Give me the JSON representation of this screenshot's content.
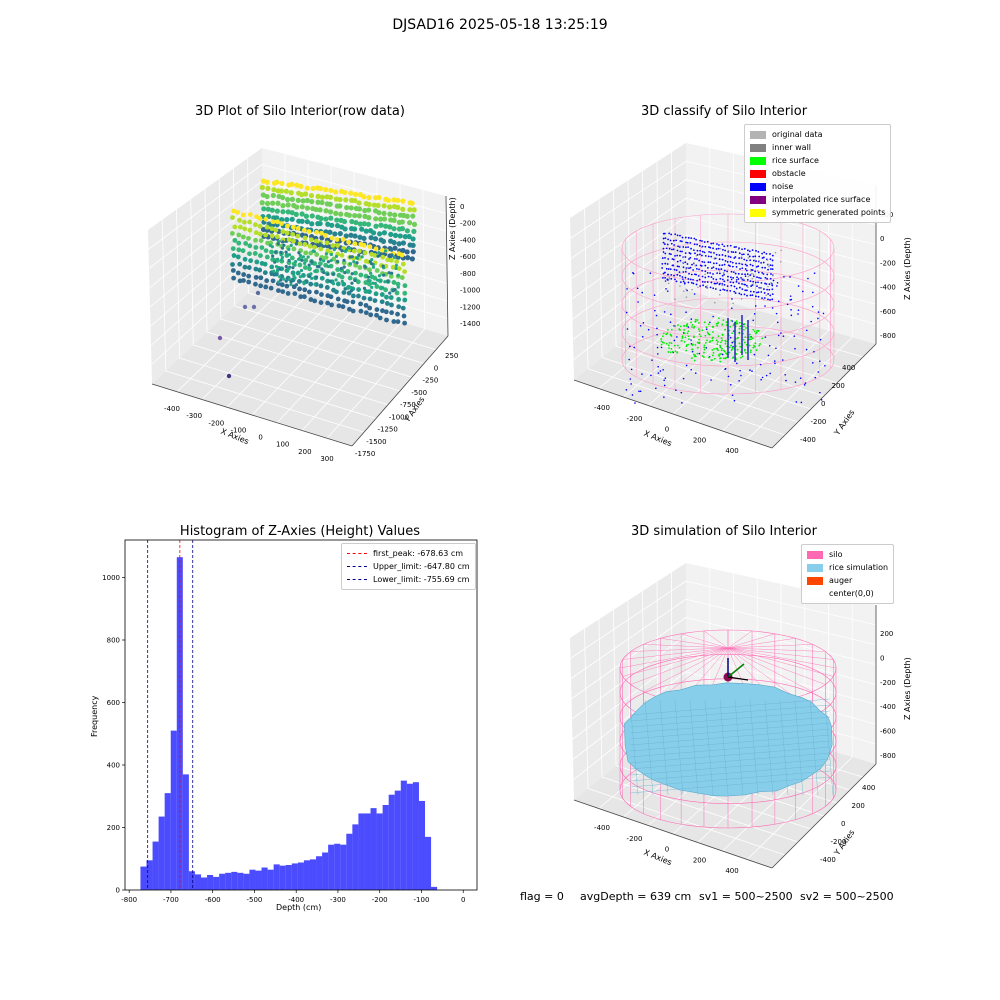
{
  "suptitle": "DJSAD16 2025-05-18 13:25:19",
  "footer": {
    "flag": "flag = 0",
    "avg_depth": "avgDepth = 639 cm",
    "sv1": "sv1 = 500~2500",
    "sv2": "sv2 = 500~2500"
  },
  "panels": {
    "raw": {
      "title": "3D Plot of Silo Interior(row data)",
      "xlabel": "X Axies",
      "ylabel": "Y Axies",
      "zlabel": "Z Axies (Depth)",
      "xticks": [
        "-400",
        "-300",
        "-200",
        "-100",
        "0",
        "100",
        "200",
        "300"
      ],
      "yticks": [
        "250",
        "0",
        "-250",
        "-500",
        "-750",
        "-1000",
        "-1250",
        "-1500",
        "-1750"
      ],
      "zticks": [
        "0",
        "-200",
        "-400",
        "-600",
        "-800",
        "-1000",
        "-1200",
        "-1400"
      ]
    },
    "classify": {
      "title": "3D classify of Silo Interior",
      "xlabel": "X Axies",
      "ylabel": "Y Axies",
      "zlabel": "Z Axies (Depth)",
      "xticks": [
        "-400",
        "-200",
        "0",
        "200",
        "400"
      ],
      "yticks": [
        "400",
        "200",
        "0",
        "-200",
        "-400"
      ],
      "zticks": [
        "200",
        "0",
        "-200",
        "-400",
        "-600",
        "-800"
      ],
      "legend": [
        {
          "label": "original data",
          "color": "#b3b3b3"
        },
        {
          "label": "inner wall",
          "color": "#808080"
        },
        {
          "label": "rice surface",
          "color": "#00ff00"
        },
        {
          "label": "obstacle",
          "color": "#ff0000"
        },
        {
          "label": "noise",
          "color": "#0000ff"
        },
        {
          "label": "interpolated rice surface",
          "color": "#800080"
        },
        {
          "label": "symmetric generated points",
          "color": "#ffff00"
        }
      ]
    },
    "simulation": {
      "title": "3D simulation of Silo Interior",
      "xlabel": "X Axies",
      "ylabel": "Y Axies",
      "zlabel": "Z Axies (Depth)",
      "xticks": [
        "-400",
        "-200",
        "0",
        "200",
        "400"
      ],
      "yticks": [
        "400",
        "200",
        "0",
        "-200",
        "-400"
      ],
      "zticks": [
        "200",
        "0",
        "-200",
        "-400",
        "-600",
        "-800"
      ],
      "legend": [
        {
          "label": "silo",
          "color": "#ff69b4"
        },
        {
          "label": "rice simulation",
          "color": "#87ceeb"
        },
        {
          "label": "auger",
          "color": "#ff4500"
        },
        {
          "label": "center(0,0)",
          "color": "#ffffff"
        }
      ]
    }
  },
  "chart_data": [
    {
      "type": "bar",
      "title": "Histogram of Z-Axies (Height) Values",
      "xlabel": "Depth (cm)",
      "ylabel": "Frequency",
      "xlim": [
        -810,
        33
      ],
      "ylim": [
        0,
        1120
      ],
      "bin_start": -773,
      "bin_width": 14.5,
      "values": [
        75,
        95,
        155,
        235,
        310,
        510,
        1065,
        370,
        60,
        50,
        40,
        48,
        42,
        52,
        55,
        58,
        55,
        52,
        65,
        62,
        72,
        65,
        82,
        78,
        80,
        85,
        88,
        95,
        98,
        108,
        120,
        145,
        148,
        145,
        180,
        210,
        245,
        245,
        262,
        245,
        272,
        305,
        318,
        350,
        340,
        345,
        285,
        170,
        10
      ],
      "color": "#0000ff",
      "xticks": [
        "-800",
        "-700",
        "-600",
        "-500",
        "-400",
        "-300",
        "-200",
        "-100",
        "0"
      ],
      "yticks": [
        "0",
        "200",
        "400",
        "600",
        "800",
        "1000"
      ],
      "lines": [
        {
          "label": "first_peak: -678.63 cm",
          "x": -678.63,
          "color": "#ff0000"
        },
        {
          "label": "Upper_limit: -647.80 cm",
          "x": -647.8,
          "color": "#00008b"
        },
        {
          "label": "Lower_limit: -755.69 cm",
          "x": -755.69,
          "color": "#00008b"
        }
      ]
    }
  ]
}
